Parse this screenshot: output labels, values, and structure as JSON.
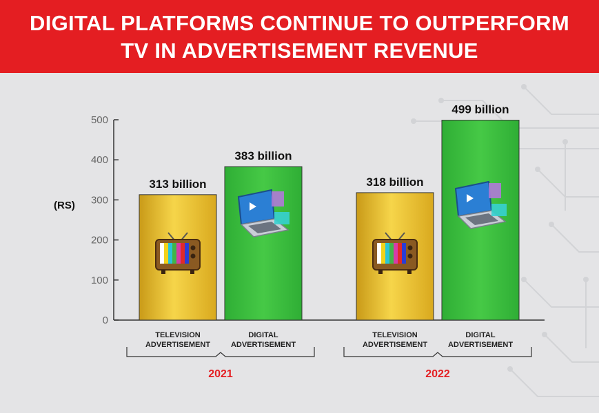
{
  "header": {
    "title_line1": "DIGITAL PLATFORMS CONTINUE TO OUTPERFORM",
    "title_line2": "TV IN ADVERTISEMENT REVENUE"
  },
  "colors": {
    "banner": "#e41e22",
    "tv_bar": "#e8bd2c",
    "digital_bar": "#3cbc3c",
    "year_label": "#e41e22"
  },
  "chart_data": {
    "type": "bar",
    "ylabel": "(RS)",
    "ylim": [
      0,
      500
    ],
    "yticks": [
      0,
      100,
      200,
      300,
      400,
      500
    ],
    "grid": false,
    "groups": [
      {
        "year": "2021",
        "bars": [
          {
            "category": [
              "TELEVISION",
              "ADVERTISEMENT"
            ],
            "value": 313,
            "label": "313 billion",
            "kind": "tv",
            "icon": "tv-icon"
          },
          {
            "category": [
              "DIGITAL",
              "ADVERTISEMENT"
            ],
            "value": 383,
            "label": "383 billion",
            "kind": "digital",
            "icon": "laptop-icon"
          }
        ]
      },
      {
        "year": "2022",
        "bars": [
          {
            "category": [
              "TELEVISION",
              "ADVERTISEMENT"
            ],
            "value": 318,
            "label": "318 billion",
            "kind": "tv",
            "icon": "tv-icon"
          },
          {
            "category": [
              "DIGITAL",
              "ADVERTISEMENT"
            ],
            "value": 499,
            "label": "499 billion",
            "kind": "digital",
            "icon": "laptop-icon"
          }
        ]
      }
    ]
  }
}
